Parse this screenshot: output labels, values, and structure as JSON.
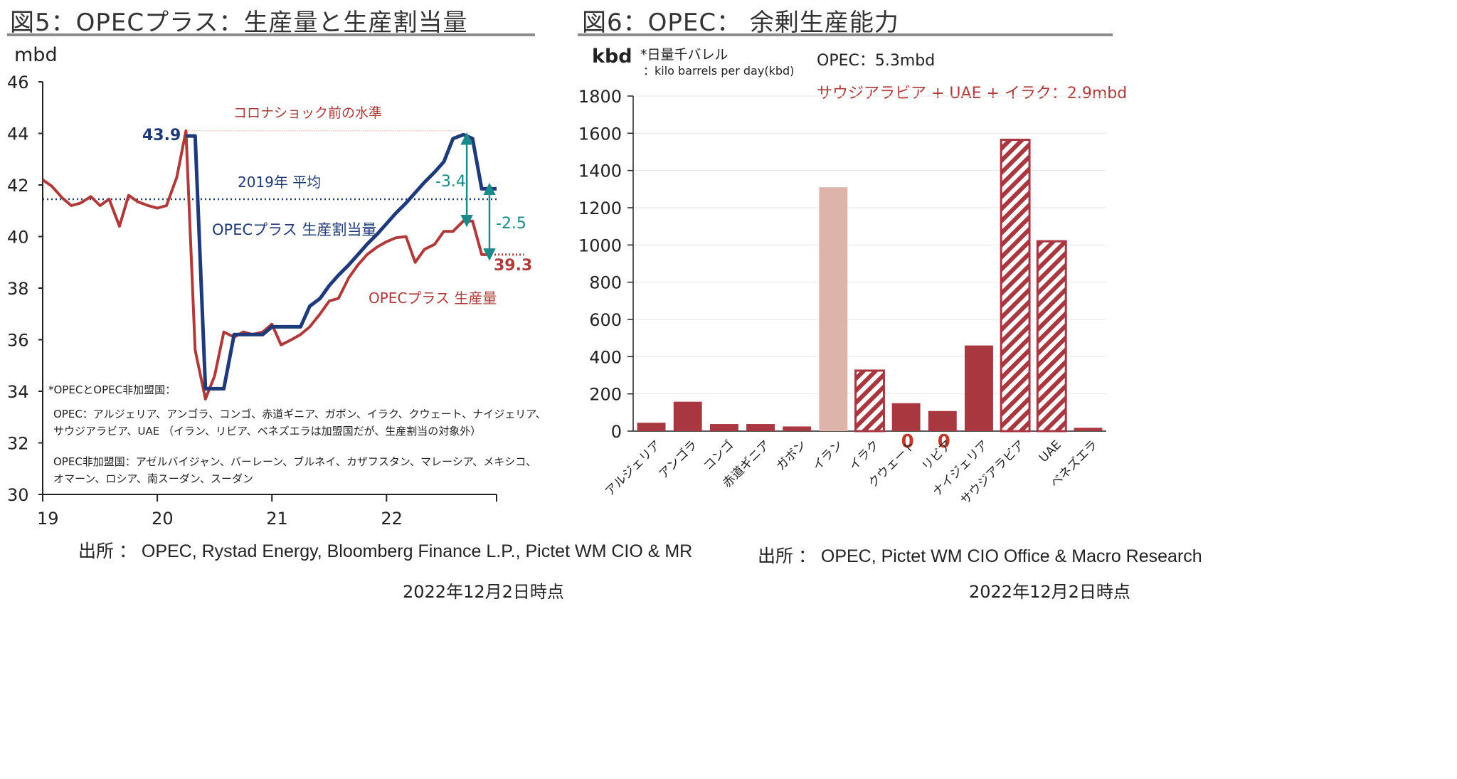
{
  "left": {
    "title": "図5：OPECプラス：生産量と生産割当量",
    "unit": "mbd",
    "label_pre_corona": "コロナショック前の水準",
    "label_2019_avg": "2019年 平均",
    "label_quota": "OPECプラス 生産割当量",
    "label_production": "OPECプラス 生産量",
    "value_43_9": "43.9",
    "value_39_3": "39.3",
    "diff_3_4": "-3.4",
    "diff_2_5": "-2.5",
    "note_heading": "*OPECとOPEC非加盟国：",
    "note_opec_1": "OPEC：アルジェリア、アンゴラ、コンゴ、赤道ギニア、ガボン、イラク、クウェート、ナイジェリア、",
    "note_opec_2": "サウジアラビア、UAE （イラン、リビア、ベネズエラは加盟国だが、生産割当の対象外）",
    "note_non_1": "OPEC非加盟国：アゼルバイジャン、バーレーン、ブルネイ、カザフスタン、マレーシア、メキシコ、",
    "note_non_2": "オマーン、ロシア、南スーダン、スーダン",
    "source": "出所 ： OPEC, Rystad Energy, Bloomberg Finance L.P., Pictet WM CIO & MR",
    "date": "2022年12月2日時点"
  },
  "right": {
    "title": "図6：OPEC： 余剰生産能力",
    "unit": "kbd",
    "unit_note_1": "*日量千バレル",
    "unit_note_2": "：kilo barrels per day(kbd)",
    "opec_total": "OPEC：5.3mbd",
    "subset_total": "サウジアラビア + UAE + イラク：2.9mbd",
    "source": "出所 ： OPEC, Pictet WM CIO Office & Macro Research",
    "date": "2022年12月2日時点"
  },
  "colors": {
    "production": "#b03a3a",
    "quota": "#1f3a7a",
    "avg_line": "#1f3a7a",
    "arrow": "#1a8a8a",
    "bar": "#a83740",
    "bar_light": "#ddb3aa",
    "accent_red": "#c0392b"
  },
  "chart_data": [
    {
      "type": "line",
      "xlabel": "",
      "ylabel": "mbd",
      "ylim": [
        30,
        46
      ],
      "yticks": [
        30,
        32,
        34,
        36,
        38,
        40,
        42,
        44,
        46
      ],
      "xticks": [
        "19",
        "20",
        "21",
        "22"
      ],
      "xlim": [
        2019.0,
        2022.96
      ],
      "avg_2019": 41.45,
      "pre_corona_level": 44.1,
      "series": [
        {
          "name": "OPECプラス 生産割当量",
          "x": [
            2020.25,
            2020.33,
            2020.42,
            2020.5,
            2020.58,
            2020.67,
            2020.75,
            2020.83,
            2020.92,
            2021.0,
            2021.08,
            2021.17,
            2021.25,
            2021.33,
            2021.42,
            2021.5,
            2021.58,
            2021.67,
            2021.75,
            2021.83,
            2021.92,
            2022.0,
            2022.08,
            2022.17,
            2022.25,
            2022.33,
            2022.42,
            2022.5,
            2022.58,
            2022.67,
            2022.75,
            2022.83,
            2022.92,
            2022.96
          ],
          "values": [
            43.9,
            43.9,
            34.1,
            34.1,
            34.1,
            36.2,
            36.2,
            36.2,
            36.2,
            36.5,
            36.5,
            36.5,
            36.5,
            37.3,
            37.6,
            38.1,
            38.5,
            38.9,
            39.3,
            39.7,
            40.1,
            40.5,
            40.9,
            41.3,
            41.7,
            42.1,
            42.5,
            42.9,
            43.8,
            43.95,
            43.8,
            41.85,
            41.85,
            41.85
          ]
        },
        {
          "name": "OPECプラス 生産量",
          "x": [
            2019.0,
            2019.08,
            2019.17,
            2019.25,
            2019.33,
            2019.42,
            2019.5,
            2019.58,
            2019.67,
            2019.75,
            2019.83,
            2019.92,
            2020.0,
            2020.08,
            2020.17,
            2020.25,
            2020.33,
            2020.42,
            2020.5,
            2020.58,
            2020.67,
            2020.75,
            2020.83,
            2020.92,
            2021.0,
            2021.08,
            2021.17,
            2021.25,
            2021.33,
            2021.42,
            2021.5,
            2021.58,
            2021.67,
            2021.75,
            2021.83,
            2021.92,
            2022.0,
            2022.08,
            2022.17,
            2022.25,
            2022.33,
            2022.42,
            2022.5,
            2022.58,
            2022.67,
            2022.75,
            2022.83,
            2022.92
          ],
          "values": [
            42.2,
            41.95,
            41.5,
            41.2,
            41.3,
            41.55,
            41.2,
            41.45,
            40.4,
            41.6,
            41.35,
            41.2,
            41.1,
            41.2,
            42.3,
            44.1,
            35.6,
            33.7,
            34.6,
            36.3,
            36.1,
            36.3,
            36.2,
            36.3,
            36.6,
            35.8,
            36.0,
            36.2,
            36.5,
            37.0,
            37.5,
            37.6,
            38.4,
            38.9,
            39.3,
            39.6,
            39.8,
            39.95,
            40.0,
            39.0,
            39.5,
            39.7,
            40.2,
            40.2,
            40.6,
            40.6,
            39.3,
            39.3
          ]
        }
      ]
    },
    {
      "type": "bar",
      "ylabel": "kbd",
      "ylim": [
        0,
        1800
      ],
      "yticks": [
        0,
        200,
        400,
        600,
        800,
        1000,
        1200,
        1400,
        1600,
        1800
      ],
      "categories": [
        "アルジェリア",
        "アンゴラ",
        "コンゴ",
        "赤道ギニア",
        "ガボン",
        "イラン",
        "イラク",
        "クウェート",
        "リビア",
        "ナイジェリア",
        "サウジアラビア",
        "UAE",
        "ベネズエラ"
      ],
      "values": [
        45,
        158,
        38,
        38,
        25,
        1310,
        325,
        150,
        108,
        460,
        1565,
        1020,
        18
      ],
      "styles": [
        "solid",
        "solid",
        "solid",
        "solid",
        "solid",
        "light",
        "hatched",
        "solid",
        "solid",
        "solid",
        "hatched",
        "hatched",
        "solid"
      ],
      "zero_markers": [
        7,
        8
      ],
      "zero_marker_label": "0"
    }
  ]
}
